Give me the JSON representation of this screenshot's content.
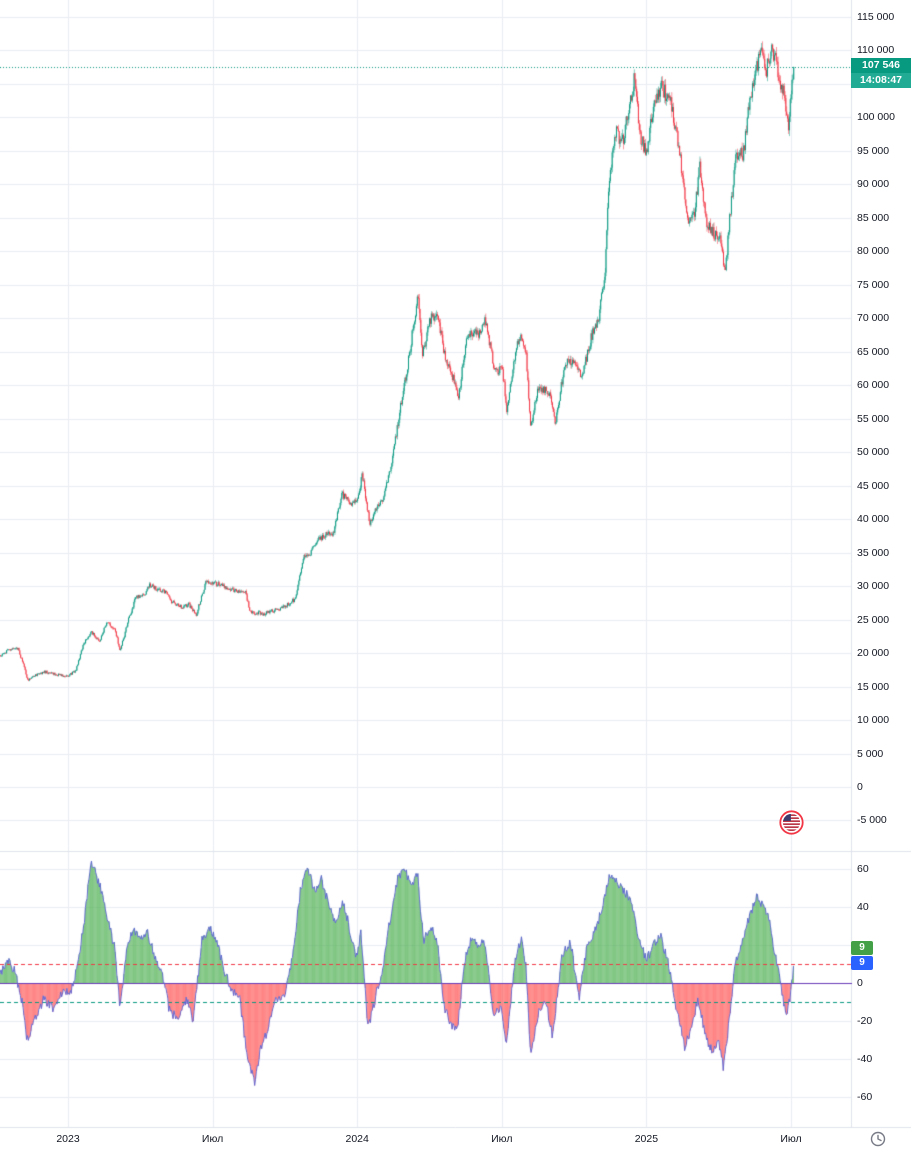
{
  "price_axis": {
    "last_price_label": "107 546",
    "countdown": "14:08:47"
  },
  "oscillator": {
    "value_labels": [
      "9",
      "9"
    ]
  },
  "colors": {
    "up": "#089981",
    "down": "#f23645",
    "grid": "#e9edf3",
    "axis_border": "#e0e3eb",
    "text": "#131722",
    "last_price_line": "#089981",
    "badge_price_bg": "#089981",
    "badge_countdown_bg": "#22ab94",
    "osc_pos": "#4caf50",
    "osc_neg": "#ff5252",
    "osc_line": "#5b63d3",
    "osc_zero": "#673ab7",
    "upper_dashed": "#f23645",
    "lower_dashed": "#089981",
    "badge_hist_bg": "#43a047",
    "badge_line_bg": "#2962ff",
    "icon_gray": "#787b86",
    "flag_ring": "#f23645"
  },
  "chart_data": {
    "type": "candlestick",
    "title": "",
    "x_axis": {
      "unit": "months since 2022-10-01",
      "ticks": [
        {
          "label": "2023",
          "t": 3
        },
        {
          "label": "Июл",
          "t": 9
        },
        {
          "label": "2024",
          "t": 15
        },
        {
          "label": "Июл",
          "t": 21
        },
        {
          "label": "2025",
          "t": 27
        },
        {
          "label": "Июл",
          "t": 33
        }
      ]
    },
    "price_pane": {
      "ylim": [
        -5000,
        115000
      ],
      "last_price": 107546,
      "tick_labels": [
        {
          "label": "115 000",
          "value": 115000
        },
        {
          "label": "110 000",
          "value": 110000
        },
        {
          "label": "105 000",
          "value": 105000
        },
        {
          "label": "100 000",
          "value": 100000
        },
        {
          "label": "95 000",
          "value": 95000
        },
        {
          "label": "90 000",
          "value": 90000
        },
        {
          "label": "85 000",
          "value": 85000
        },
        {
          "label": "80 000",
          "value": 80000
        },
        {
          "label": "75 000",
          "value": 75000
        },
        {
          "label": "70 000",
          "value": 70000
        },
        {
          "label": "65 000",
          "value": 65000
        },
        {
          "label": "60 000",
          "value": 60000
        },
        {
          "label": "55 000",
          "value": 55000
        },
        {
          "label": "50 000",
          "value": 50000
        },
        {
          "label": "45 000",
          "value": 45000
        },
        {
          "label": "40 000",
          "value": 40000
        },
        {
          "label": "35 000",
          "value": 35000
        },
        {
          "label": "30 000",
          "value": 30000
        },
        {
          "label": "25 000",
          "value": 25000
        },
        {
          "label": "20 000",
          "value": 20000
        },
        {
          "label": "15 000",
          "value": 15000
        },
        {
          "label": "10 000",
          "value": 10000
        },
        {
          "label": "5 000",
          "value": 5000
        },
        {
          "label": "0",
          "value": 0
        },
        {
          "label": "-5 000",
          "value": -5000
        }
      ],
      "anchors": [
        [
          0.15,
          19600
        ],
        [
          0.5,
          20400
        ],
        [
          0.9,
          20700
        ],
        [
          1.15,
          18200
        ],
        [
          1.3,
          15900
        ],
        [
          1.6,
          16600
        ],
        [
          2,
          17200
        ],
        [
          2.5,
          16800
        ],
        [
          3,
          16600
        ],
        [
          3.3,
          17300
        ],
        [
          3.6,
          21100
        ],
        [
          3.95,
          23100
        ],
        [
          4.3,
          21900
        ],
        [
          4.6,
          24600
        ],
        [
          4.95,
          23400
        ],
        [
          5.15,
          20300
        ],
        [
          5.5,
          25000
        ],
        [
          5.8,
          28300
        ],
        [
          6.1,
          28500
        ],
        [
          6.4,
          30200
        ],
        [
          6.75,
          29300
        ],
        [
          7,
          29200
        ],
        [
          7.3,
          27600
        ],
        [
          7.65,
          26900
        ],
        [
          8,
          27200
        ],
        [
          8.3,
          25700
        ],
        [
          8.7,
          30500
        ],
        [
          9,
          30500
        ],
        [
          9.35,
          30200
        ],
        [
          9.7,
          29500
        ],
        [
          10,
          29200
        ],
        [
          10.35,
          29100
        ],
        [
          10.55,
          26100
        ],
        [
          10.8,
          26000
        ],
        [
          11.1,
          25900
        ],
        [
          11.4,
          26200
        ],
        [
          11.75,
          26600
        ],
        [
          12,
          27000
        ],
        [
          12.4,
          28000
        ],
        [
          12.75,
          34300
        ],
        [
          13,
          34600
        ],
        [
          13.35,
          36800
        ],
        [
          13.7,
          37800
        ],
        [
          14,
          37800
        ],
        [
          14.35,
          43800
        ],
        [
          14.7,
          42400
        ],
        [
          15,
          42600
        ],
        [
          15.2,
          46800
        ],
        [
          15.5,
          39200
        ],
        [
          15.8,
          41800
        ],
        [
          16.05,
          42800
        ],
        [
          16.4,
          48000
        ],
        [
          16.8,
          57300
        ],
        [
          17.05,
          62000
        ],
        [
          17.3,
          68500
        ],
        [
          17.5,
          73200
        ],
        [
          17.7,
          64500
        ],
        [
          18,
          69800
        ],
        [
          18.3,
          70600
        ],
        [
          18.65,
          64000
        ],
        [
          19,
          60700
        ],
        [
          19.2,
          58500
        ],
        [
          19.5,
          66500
        ],
        [
          19.8,
          68200
        ],
        [
          20.05,
          67700
        ],
        [
          20.3,
          69800
        ],
        [
          20.7,
          61900
        ],
        [
          21,
          62800
        ],
        [
          21.2,
          56300
        ],
        [
          21.55,
          65000
        ],
        [
          21.8,
          67800
        ],
        [
          22,
          64600
        ],
        [
          22.18,
          53900
        ],
        [
          22.5,
          59400
        ],
        [
          22.8,
          59100
        ],
        [
          23,
          58900
        ],
        [
          23.2,
          54200
        ],
        [
          23.6,
          63300
        ],
        [
          24,
          63500
        ],
        [
          24.3,
          61000
        ],
        [
          24.7,
          67200
        ],
        [
          25,
          69900
        ],
        [
          25.25,
          76000
        ],
        [
          25.45,
          90600
        ],
        [
          25.7,
          97900
        ],
        [
          26,
          96400
        ],
        [
          26.25,
          101300
        ],
        [
          26.5,
          106200
        ],
        [
          26.7,
          97600
        ],
        [
          27,
          94400
        ],
        [
          27.3,
          102300
        ],
        [
          27.6,
          104800
        ],
        [
          28,
          102100
        ],
        [
          28.3,
          96600
        ],
        [
          28.7,
          84800
        ],
        [
          29,
          86100
        ],
        [
          29.2,
          92800
        ],
        [
          29.5,
          83800
        ],
        [
          29.8,
          82600
        ],
        [
          30.05,
          82500
        ],
        [
          30.25,
          76400
        ],
        [
          30.45,
          85200
        ],
        [
          30.7,
          94800
        ],
        [
          31,
          94300
        ],
        [
          31.3,
          103300
        ],
        [
          31.55,
          107200
        ],
        [
          31.75,
          109700
        ],
        [
          31.95,
          106900
        ],
        [
          32.15,
          110300
        ],
        [
          32.35,
          108900
        ],
        [
          32.5,
          105100
        ],
        [
          32.7,
          103800
        ],
        [
          32.88,
          99000
        ],
        [
          33,
          103600
        ],
        [
          33.1,
          107546
        ]
      ]
    },
    "oscillator_pane": {
      "ylim": [
        -70,
        70
      ],
      "upper_level": 10,
      "lower_level": -10,
      "zero_level": 0,
      "last_values": [
        9,
        9
      ],
      "tick_labels": [
        {
          "label": "60",
          "value": 60
        },
        {
          "label": "40",
          "value": 40
        },
        {
          "label": "20",
          "value": 20
        },
        {
          "label": "0",
          "value": 0
        },
        {
          "label": "-20",
          "value": -20
        },
        {
          "label": "-40",
          "value": -40
        },
        {
          "label": "-60",
          "value": -60
        }
      ],
      "anchors": [
        [
          0.2,
          5
        ],
        [
          0.5,
          12
        ],
        [
          0.8,
          6
        ],
        [
          1.1,
          -10
        ],
        [
          1.3,
          -30
        ],
        [
          1.6,
          -20
        ],
        [
          2,
          -8
        ],
        [
          2.4,
          -14
        ],
        [
          2.8,
          -4
        ],
        [
          3.1,
          -6
        ],
        [
          3.4,
          10
        ],
        [
          3.7,
          35
        ],
        [
          3.95,
          65
        ],
        [
          4.15,
          58
        ],
        [
          4.4,
          48
        ],
        [
          4.7,
          30
        ],
        [
          4.95,
          18
        ],
        [
          5.15,
          -12
        ],
        [
          5.45,
          18
        ],
        [
          5.7,
          28
        ],
        [
          6,
          24
        ],
        [
          6.3,
          26
        ],
        [
          6.6,
          14
        ],
        [
          6.9,
          6
        ],
        [
          7.2,
          -14
        ],
        [
          7.6,
          -20
        ],
        [
          7.9,
          -8
        ],
        [
          8.2,
          -20
        ],
        [
          8.55,
          22
        ],
        [
          8.9,
          30
        ],
        [
          9.2,
          20
        ],
        [
          9.5,
          6
        ],
        [
          9.8,
          -4
        ],
        [
          10.1,
          -6
        ],
        [
          10.45,
          -40
        ],
        [
          10.75,
          -52
        ],
        [
          11,
          -34
        ],
        [
          11.3,
          -24
        ],
        [
          11.6,
          -10
        ],
        [
          12,
          -6
        ],
        [
          12.3,
          12
        ],
        [
          12.65,
          50
        ],
        [
          12.95,
          62
        ],
        [
          13.2,
          48
        ],
        [
          13.5,
          55
        ],
        [
          13.8,
          42
        ],
        [
          14.1,
          30
        ],
        [
          14.4,
          44
        ],
        [
          14.7,
          28
        ],
        [
          14.95,
          12
        ],
        [
          15.15,
          26
        ],
        [
          15.45,
          -24
        ],
        [
          15.75,
          -8
        ],
        [
          16.05,
          8
        ],
        [
          16.35,
          32
        ],
        [
          16.7,
          56
        ],
        [
          16.95,
          60
        ],
        [
          17.25,
          52
        ],
        [
          17.5,
          58
        ],
        [
          17.75,
          22
        ],
        [
          18,
          30
        ],
        [
          18.3,
          24
        ],
        [
          18.6,
          -12
        ],
        [
          18.9,
          -22
        ],
        [
          19.15,
          -26
        ],
        [
          19.45,
          12
        ],
        [
          19.75,
          24
        ],
        [
          20,
          18
        ],
        [
          20.3,
          22
        ],
        [
          20.65,
          -18
        ],
        [
          20.95,
          -12
        ],
        [
          21.2,
          -34
        ],
        [
          21.5,
          8
        ],
        [
          21.8,
          24
        ],
        [
          22,
          8
        ],
        [
          22.2,
          -40
        ],
        [
          22.5,
          -16
        ],
        [
          22.8,
          -8
        ],
        [
          23.1,
          -28
        ],
        [
          23.5,
          14
        ],
        [
          23.85,
          22
        ],
        [
          24.2,
          -8
        ],
        [
          24.55,
          20
        ],
        [
          24.9,
          28
        ],
        [
          25.2,
          42
        ],
        [
          25.5,
          58
        ],
        [
          25.8,
          52
        ],
        [
          26.1,
          48
        ],
        [
          26.4,
          42
        ],
        [
          26.7,
          22
        ],
        [
          27,
          12
        ],
        [
          27.3,
          20
        ],
        [
          27.6,
          24
        ],
        [
          27.95,
          8
        ],
        [
          28.25,
          -14
        ],
        [
          28.6,
          -34
        ],
        [
          28.9,
          -22
        ],
        [
          29.15,
          -8
        ],
        [
          29.45,
          -28
        ],
        [
          29.75,
          -36
        ],
        [
          30,
          -30
        ],
        [
          30.2,
          -45
        ],
        [
          30.45,
          -18
        ],
        [
          30.7,
          12
        ],
        [
          31,
          22
        ],
        [
          31.3,
          36
        ],
        [
          31.6,
          46
        ],
        [
          31.85,
          40
        ],
        [
          32.1,
          34
        ],
        [
          32.3,
          18
        ],
        [
          32.5,
          4
        ],
        [
          32.7,
          -10
        ],
        [
          32.85,
          -16
        ],
        [
          33,
          -4
        ],
        [
          33.1,
          9
        ]
      ]
    }
  }
}
